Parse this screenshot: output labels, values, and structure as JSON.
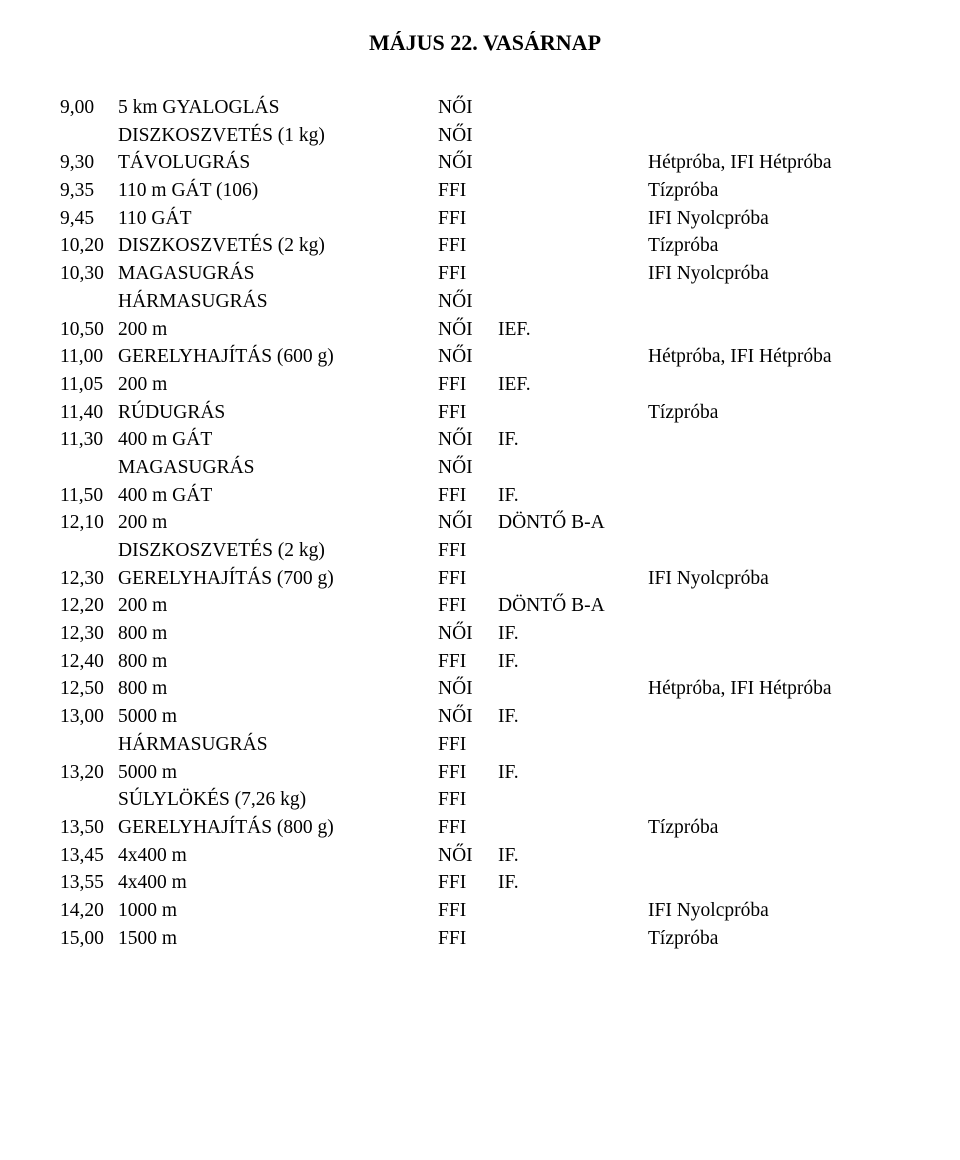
{
  "title": "MÁJUS 22. VASÁRNAP",
  "rows": [
    {
      "time": "9,00",
      "event": "5 km GYALOGLÁS",
      "cat": "NŐI",
      "note1": "",
      "note2": ""
    },
    {
      "time": "",
      "event": "DISZKOSZVETÉS (1 kg)",
      "cat": "NŐI",
      "note1": "",
      "note2": ""
    },
    {
      "time": "9,30",
      "event": "TÁVOLUGRÁS",
      "cat": "NŐI",
      "note1": "",
      "note2": "Hétpróba, IFI Hétpróba"
    },
    {
      "time": "9,35",
      "event": "110 m GÁT (106)",
      "cat": "FFI",
      "note1": "",
      "note2": "Tízpróba"
    },
    {
      "time": "9,45",
      "event": "110 GÁT",
      "cat": "FFI",
      "note1": "",
      "note2": "IFI Nyolcpróba"
    },
    {
      "time": "10,20",
      "event": "DISZKOSZVETÉS (2 kg)",
      "cat": "FFI",
      "note1": "",
      "note2": "Tízpróba"
    },
    {
      "time": "10,30",
      "event": "MAGASUGRÁS",
      "cat": "FFI",
      "note1": "",
      "note2": "IFI Nyolcpróba"
    },
    {
      "time": "",
      "event": "HÁRMASUGRÁS",
      "cat": "NŐI",
      "note1": "",
      "note2": ""
    },
    {
      "time": "10,50",
      "event": "200 m",
      "cat": "NŐI",
      "note1": "IEF.",
      "note2": ""
    },
    {
      "time": "11,00",
      "event": "GERELYHAJÍTÁS (600 g)",
      "cat": "NŐI",
      "note1": "",
      "note2": "Hétpróba, IFI Hétpróba"
    },
    {
      "time": "11,05",
      "event": "200 m",
      "cat": "FFI",
      "note1": "IEF.",
      "note2": ""
    },
    {
      "time": "11,40",
      "event": "RÚDUGRÁS",
      "cat": "FFI",
      "note1": "",
      "note2": "Tízpróba"
    },
    {
      "time": "11,30",
      "event": "400 m GÁT",
      "cat": "NŐI",
      "note1": "IF.",
      "note2": ""
    },
    {
      "time": "",
      "event": "MAGASUGRÁS",
      "cat": "NŐI",
      "note1": "",
      "note2": ""
    },
    {
      "time": "11,50",
      "event": "400 m GÁT",
      "cat": "FFI",
      "note1": "IF.",
      "note2": ""
    },
    {
      "time": "12,10",
      "event": "200 m",
      "cat": "NŐI",
      "note1": "DÖNTŐ B-A",
      "note2": ""
    },
    {
      "time": "",
      "event": "DISZKOSZVETÉS (2 kg)",
      "cat": "FFI",
      "note1": "",
      "note2": ""
    },
    {
      "time": "12,30",
      "event": "GERELYHAJÍTÁS (700 g)",
      "cat": "FFI",
      "note1": "",
      "note2": "IFI Nyolcpróba"
    },
    {
      "time": "12,20",
      "event": "200 m",
      "cat": "FFI",
      "note1": "DÖNTŐ B-A",
      "note2": ""
    },
    {
      "time": "12,30",
      "event": "800 m",
      "cat": "NŐI",
      "note1": "IF.",
      "note2": ""
    },
    {
      "time": "12,40",
      "event": "800 m",
      "cat": "FFI",
      "note1": "IF.",
      "note2": ""
    },
    {
      "time": "12,50",
      "event": "800 m",
      "cat": "NŐI",
      "note1": "",
      "note2": "Hétpróba, IFI Hétpróba"
    },
    {
      "time": "13,00",
      "event": "5000 m",
      "cat": "NŐI",
      "note1": "IF.",
      "note2": ""
    },
    {
      "time": "",
      "event": "HÁRMASUGRÁS",
      "cat": "FFI",
      "note1": "",
      "note2": ""
    },
    {
      "time": "13,20",
      "event": "5000 m",
      "cat": "FFI",
      "note1": "IF.",
      "note2": ""
    },
    {
      "time": "",
      "event": "SÚLYLÖKÉS (7,26 kg)",
      "cat": "FFI",
      "note1": "",
      "note2": ""
    },
    {
      "time": "13,50",
      "event": "GERELYHAJÍTÁS (800 g)",
      "cat": "FFI",
      "note1": "",
      "note2": "Tízpróba"
    },
    {
      "time": "13,45",
      "event": "4x400 m",
      "cat": "NŐI",
      "note1": "IF.",
      "note2": ""
    },
    {
      "time": "13,55",
      "event": "4x400 m",
      "cat": "FFI",
      "note1": "IF.",
      "note2": ""
    },
    {
      "time": "14,20",
      "event": "1000 m",
      "cat": "FFI",
      "note1": "",
      "note2": "IFI Nyolcpróba"
    },
    {
      "time": "15,00",
      "event": "1500 m",
      "cat": "FFI",
      "note1": "",
      "note2": "Tízpróba"
    }
  ]
}
